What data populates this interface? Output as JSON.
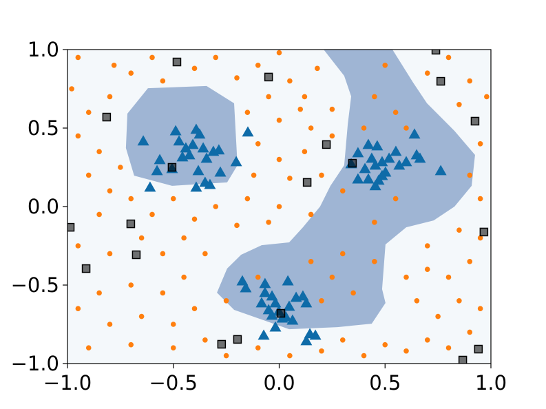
{
  "chart_data": {
    "type": "scatter",
    "xlim": [
      -1.0,
      1.0
    ],
    "ylim": [
      -1.0,
      1.0
    ],
    "xticks": [
      {
        "value": -1.0,
        "label": "−1.0"
      },
      {
        "value": -0.5,
        "label": "−0.5"
      },
      {
        "value": 0.0,
        "label": "0.0"
      },
      {
        "value": 0.5,
        "label": "0.5"
      },
      {
        "value": 1.0,
        "label": "1.0"
      }
    ],
    "yticks": [
      {
        "value": -1.0,
        "label": "−1.0"
      },
      {
        "value": -0.5,
        "label": "−0.5"
      },
      {
        "value": 0.0,
        "label": "0.0"
      },
      {
        "value": 0.5,
        "label": "0.5"
      },
      {
        "value": 1.0,
        "label": "1.0"
      }
    ],
    "background": "#f4f8fb",
    "regions": [
      {
        "color": "#9fb5d4",
        "x": [
          -0.717,
          -0.62,
          -0.343,
          -0.213,
          -0.197,
          -0.246,
          -0.506,
          -0.685,
          -0.724
        ],
        "y": [
          0.592,
          0.754,
          0.768,
          0.658,
          0.263,
          0.154,
          0.132,
          0.197,
          0.373
        ]
      },
      {
        "color": "#9fb5d4",
        "x": [
          0.21,
          0.535,
          0.633,
          0.698,
          0.828,
          0.925,
          0.909,
          0.828,
          0.73,
          0.6,
          0.502,
          0.486,
          0.502,
          0.437,
          0.275,
          0.047,
          -0.213,
          -0.294,
          -0.246,
          -0.18,
          -0.083,
          0.047,
          0.112,
          0.193,
          0.242,
          0.307,
          0.324,
          0.34,
          0.307
        ],
        "y": [
          1.0,
          1.0,
          0.789,
          0.658,
          0.482,
          0.329,
          0.132,
          0.0,
          -0.088,
          -0.132,
          -0.241,
          -0.526,
          -0.614,
          -0.746,
          -0.768,
          -0.781,
          -0.658,
          -0.548,
          -0.395,
          -0.307,
          -0.246,
          -0.228,
          -0.132,
          0.0,
          0.132,
          0.263,
          0.526,
          0.702,
          0.833
        ]
      }
    ],
    "series": [
      {
        "marker": "circle",
        "color": "#ff7f0e",
        "x": [
          -0.95,
          -0.78,
          -0.7,
          -0.6,
          -0.55,
          -0.4,
          -0.3,
          -0.2,
          -0.1,
          0.0,
          0.05,
          0.12,
          0.18,
          0.25,
          0.1,
          -0.05,
          -0.15,
          0.0,
          0.15,
          0.25,
          0.12,
          0.0,
          -0.1,
          -0.12,
          0.05,
          0.2,
          0.3,
          -0.15,
          0.0,
          0.15,
          -0.05,
          -0.2,
          -0.3,
          -0.4,
          -0.5,
          -0.6,
          -0.7,
          -0.8,
          -0.9,
          -0.95,
          -0.85,
          -0.8,
          -0.9,
          -0.98,
          -0.75,
          -0.85,
          -0.95,
          -0.8,
          -0.65,
          -0.55,
          -0.45,
          -0.35,
          -0.45,
          -0.55,
          -0.7,
          -0.85,
          -0.95,
          -0.8,
          -0.65,
          -0.5,
          -0.4,
          -0.35,
          -0.5,
          -0.7,
          -0.9,
          -0.25,
          -0.1,
          0.05,
          0.2,
          0.3,
          0.4,
          0.5,
          0.6,
          0.7,
          0.8,
          0.9,
          0.95,
          0.85,
          0.75,
          0.65,
          0.6,
          0.7,
          0.8,
          0.9,
          0.95,
          0.85,
          0.7,
          0.95,
          0.9,
          0.95,
          0.85,
          0.9,
          0.98,
          0.8,
          0.7,
          0.6,
          0.55,
          0.45,
          0.5,
          0.4,
          0.3,
          0.25,
          0.15,
          0.35,
          0.45,
          0.2,
          -0.1,
          -0.25,
          0.55,
          0.45
        ],
        "y": [
          0.95,
          0.9,
          0.85,
          0.95,
          0.8,
          0.88,
          0.95,
          0.82,
          0.9,
          0.98,
          0.8,
          0.7,
          0.88,
          0.62,
          0.62,
          0.7,
          0.6,
          0.55,
          0.5,
          0.45,
          0.35,
          0.3,
          0.4,
          0.2,
          0.18,
          0.2,
          0.1,
          0.05,
          0.0,
          -0.05,
          -0.1,
          -0.12,
          0.0,
          -0.08,
          0.05,
          -0.05,
          0.05,
          0.1,
          0.2,
          0.45,
          0.35,
          0.7,
          0.6,
          0.75,
          0.25,
          -0.05,
          -0.25,
          -0.3,
          -0.2,
          -0.3,
          -0.2,
          -0.3,
          -0.45,
          -0.55,
          -0.5,
          -0.55,
          -0.65,
          -0.75,
          -0.7,
          -0.75,
          -0.65,
          -0.85,
          -0.9,
          -0.88,
          -0.9,
          -0.95,
          -0.9,
          -0.95,
          -0.92,
          -0.85,
          -0.95,
          -0.88,
          -0.92,
          -0.85,
          -0.9,
          -0.8,
          -0.65,
          -0.6,
          -0.7,
          -0.6,
          -0.45,
          -0.4,
          -0.45,
          -0.35,
          -0.2,
          -0.15,
          -0.25,
          0.05,
          0.2,
          0.4,
          0.65,
          0.8,
          0.7,
          0.95,
          0.85,
          0.5,
          0.6,
          0.7,
          0.9,
          0.5,
          -0.3,
          -0.45,
          -0.35,
          -0.55,
          -0.35,
          -0.6,
          -0.45,
          -0.6,
          0.05,
          -0.1
        ]
      },
      {
        "marker": "triangle",
        "color": "#0e6ba8",
        "x": [
          -0.642,
          -0.564,
          -0.577,
          -0.61,
          -0.489,
          -0.473,
          -0.441,
          -0.424,
          -0.392,
          -0.376,
          -0.408,
          -0.457,
          -0.506,
          -0.359,
          -0.343,
          -0.311,
          -0.285,
          -0.382,
          -0.35,
          -0.392,
          -0.327,
          -0.278,
          -0.203,
          -0.148,
          0.372,
          0.421,
          0.463,
          0.437,
          0.454,
          0.405,
          0.486,
          0.502,
          0.519,
          0.551,
          0.567,
          0.6,
          0.639,
          0.649,
          0.665,
          0.763,
          0.372,
          0.421,
          0.47,
          0.454,
          0.486,
          0.34,
          -0.174,
          -0.158,
          -0.067,
          0.041,
          -0.034,
          -0.083,
          -0.05,
          -0.018,
          -0.002,
          0.015,
          0.047,
          0.08,
          0.112,
          0.128,
          -0.034,
          0.031,
          0.063,
          -0.018,
          -0.073,
          0.145,
          0.171,
          0.128,
          -0.067
        ],
        "y": [
          0.417,
          0.298,
          0.228,
          0.123,
          0.482,
          0.417,
          0.373,
          0.329,
          0.491,
          0.461,
          0.395,
          0.316,
          0.241,
          0.373,
          0.307,
          0.351,
          0.36,
          0.228,
          0.154,
          0.123,
          0.14,
          0.219,
          0.285,
          0.474,
          0.342,
          0.395,
          0.386,
          0.307,
          0.263,
          0.241,
          0.285,
          0.219,
          0.307,
          0.351,
          0.263,
          0.285,
          0.461,
          0.329,
          0.307,
          0.228,
          0.175,
          0.175,
          0.167,
          0.132,
          0.197,
          0.272,
          -0.474,
          -0.518,
          -0.491,
          -0.474,
          -0.57,
          -0.614,
          -0.658,
          -0.614,
          -0.667,
          -0.711,
          -0.636,
          -0.579,
          -0.57,
          -0.614,
          -0.693,
          -0.702,
          -0.724,
          -0.768,
          -0.82,
          -0.811,
          -0.82,
          -0.855,
          -0.548
        ]
      },
      {
        "marker": "square",
        "color": "#000000",
        "x": [
          -0.483,
          -0.05,
          0.74,
          0.763,
          -0.815,
          0.223,
          -0.506,
          0.132,
          0.346,
          0.925,
          -0.987,
          -0.701,
          -0.675,
          -0.912,
          0.008,
          -0.272,
          -0.197,
          0.967,
          0.941,
          0.867
        ],
        "y": [
          0.921,
          0.825,
          0.996,
          0.798,
          0.57,
          0.395,
          0.25,
          0.154,
          0.276,
          0.544,
          -0.132,
          -0.11,
          -0.307,
          -0.395,
          -0.68,
          -0.877,
          -0.846,
          -0.162,
          -0.908,
          -0.978
        ]
      }
    ]
  }
}
